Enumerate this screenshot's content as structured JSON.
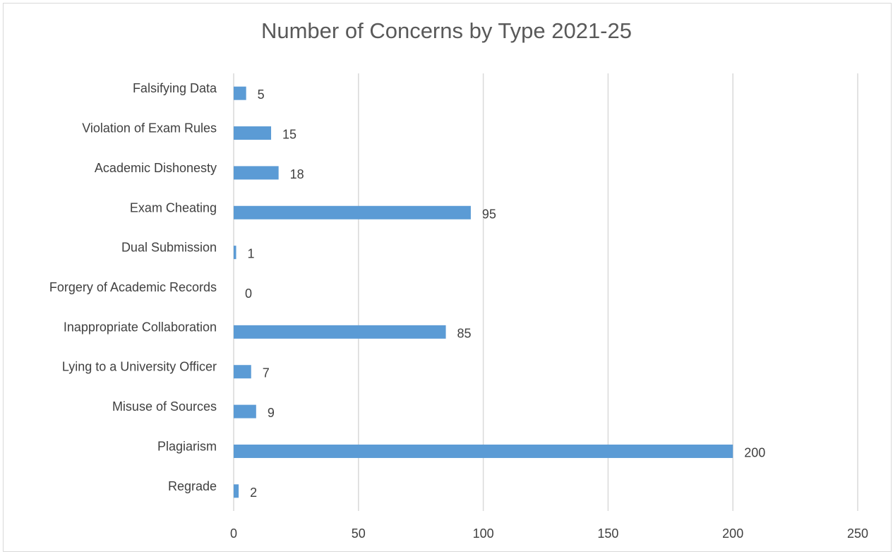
{
  "chart_data": {
    "type": "bar",
    "orientation": "horizontal",
    "title": "Number of Concerns by Type 2021-25",
    "xlabel": "",
    "ylabel": "",
    "categories": [
      "Falsifying Data",
      "Violation of Exam Rules",
      "Academic Dishonesty",
      "Exam Cheating",
      "Dual Submission",
      "Forgery of Academic Records",
      "Inappropriate Collaboration",
      "Lying to a University Officer",
      "Misuse of Sources",
      "Plagiarism",
      "Regrade"
    ],
    "values": [
      5,
      15,
      18,
      95,
      1,
      0,
      85,
      7,
      9,
      200,
      2
    ],
    "data_labels": [
      "5",
      "15",
      "18",
      "95",
      "1",
      "0",
      "85",
      "7",
      "9",
      "200",
      "2"
    ],
    "xlim": [
      0,
      250
    ],
    "xticks": [
      0,
      50,
      100,
      150,
      200,
      250
    ],
    "xtick_labels": [
      "0",
      "50",
      "100",
      "150",
      "200",
      "250"
    ],
    "grid": "vertical",
    "legend": "none",
    "colors": {
      "bar": "#5b9bd5",
      "grid": "#d9d9d9",
      "text": "#404040",
      "title": "#595959",
      "border": "#d9d9d9"
    }
  }
}
